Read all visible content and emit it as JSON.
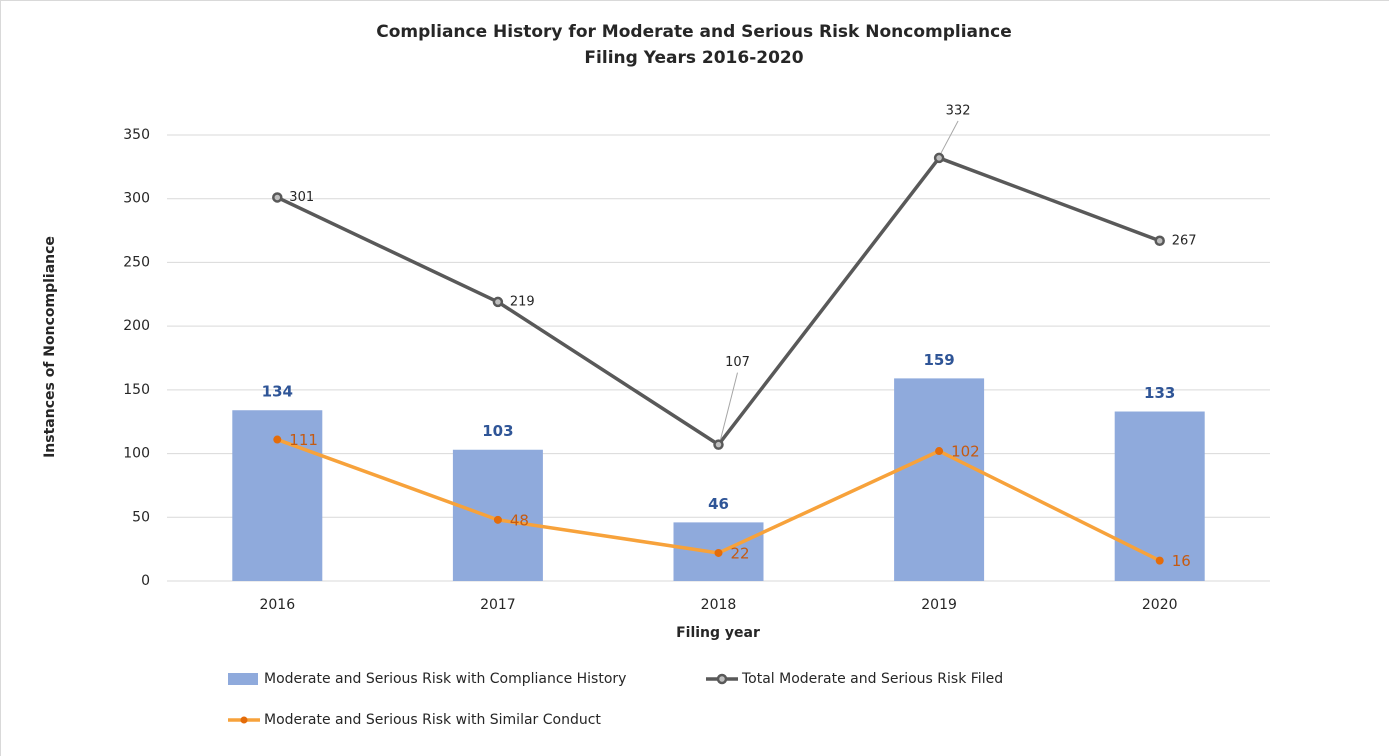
{
  "chart_data": {
    "type": "bar",
    "title": "Compliance History for Moderate and Serious Risk Noncompliance",
    "subtitle": "Filing Years 2016-2020",
    "x_label": "Filing year",
    "y_label": "Instances of Noncompliance",
    "categories": [
      "2016",
      "2017",
      "2018",
      "2019",
      "2020"
    ],
    "series": [
      {
        "name": "Moderate and Serious Risk with Compliance History",
        "type": "bar",
        "color": "#8faadc",
        "label_color": "#2f5597",
        "values": [
          134,
          103,
          46,
          159,
          133
        ]
      },
      {
        "name": "Total Moderate and Serious Risk Filed",
        "type": "line",
        "color": "#595959",
        "label_color": "#262626",
        "values": [
          301,
          219,
          107,
          332,
          267
        ]
      },
      {
        "name": "Moderate and Serious Risk with Similar Conduct",
        "type": "line",
        "color": "#f7a23b",
        "label_color": "#c55a11",
        "values": [
          111,
          48,
          22,
          102,
          16
        ]
      }
    ],
    "ylim": [
      0,
      350
    ],
    "yticks": [
      0,
      50,
      100,
      150,
      200,
      250,
      300,
      350
    ],
    "grid": true,
    "legend": "bottom"
  }
}
